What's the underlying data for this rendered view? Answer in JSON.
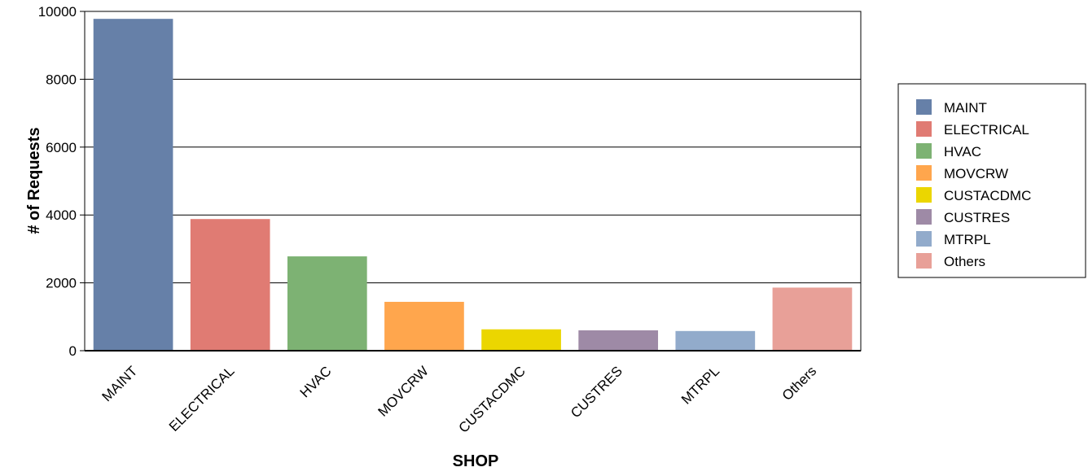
{
  "chart_data": {
    "type": "bar",
    "title": "",
    "xlabel": "SHOP",
    "ylabel": "# of Requests",
    "categories": [
      "MAINT",
      "ELECTRICAL",
      "HVAC",
      "MOVCRW",
      "CUSTACDMC",
      "CUSTRES",
      "MTRPL",
      "Others"
    ],
    "values": [
      9780,
      3880,
      2780,
      1440,
      630,
      600,
      580,
      1860
    ],
    "colors": [
      "#6680a8",
      "#e07b73",
      "#7db273",
      "#ffa64d",
      "#ebd600",
      "#9e8aa6",
      "#92abcb",
      "#e8a098"
    ],
    "ylim": [
      0,
      10000
    ],
    "yticks": [
      0,
      2000,
      4000,
      6000,
      8000,
      10000
    ],
    "grid": "horizontal",
    "legend": {
      "position": "right",
      "entries": [
        "MAINT",
        "ELECTRICAL",
        "HVAC",
        "MOVCRW",
        "CUSTACDMC",
        "CUSTRES",
        "MTRPL",
        "Others"
      ]
    }
  }
}
